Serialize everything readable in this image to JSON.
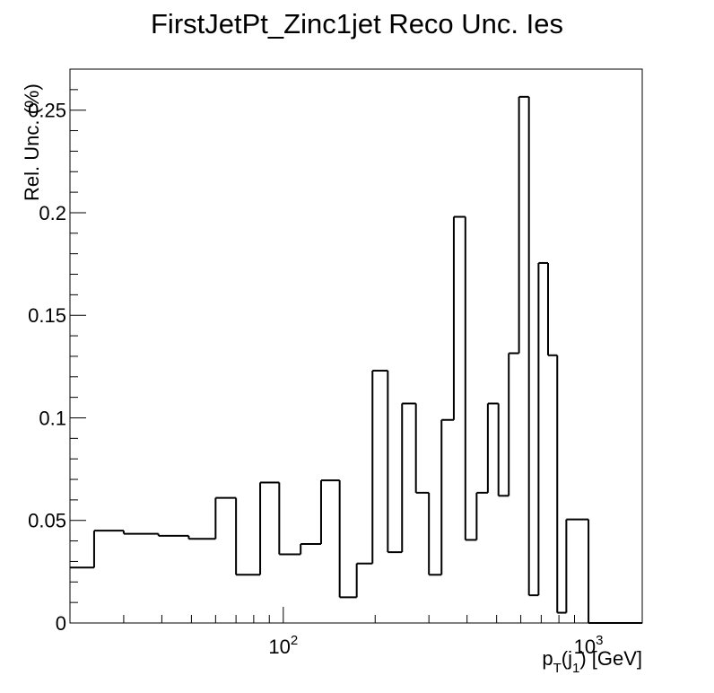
{
  "chart_data": {
    "type": "histogram",
    "title": "FirstJetPt_Zinc1jet Reco Unc. Ies",
    "ylabel": "Rel. Unc. (%)",
    "xlabel": "p_T(j_1) [GeV]",
    "xscale": "log",
    "xlim": [
      20,
      1500
    ],
    "ylim": [
      0,
      0.27
    ],
    "grid": false,
    "y_ticks": [
      0,
      0.05,
      0.1,
      0.15,
      0.2,
      0.25
    ],
    "y_tick_labels": [
      "0",
      "0.05",
      "0.1",
      "0.15",
      "0.2",
      "0.25"
    ],
    "x_tick_labels": [
      {
        "value": 100,
        "base": "10",
        "exp": "2"
      },
      {
        "value": 1000,
        "base": "10",
        "exp": "3"
      }
    ],
    "bin_edges": [
      20,
      24,
      30,
      39,
      49,
      60,
      70,
      84,
      97,
      114,
      133,
      153,
      174,
      196,
      220,
      245,
      272,
      300,
      330,
      362,
      395,
      430,
      468,
      507,
      548,
      592,
      638,
      686,
      737,
      790,
      846,
      1000,
      1500
    ],
    "values": [
      0.027,
      0.045,
      0.0435,
      0.0425,
      0.041,
      0.061,
      0.0235,
      0.0685,
      0.0335,
      0.0385,
      0.0695,
      0.0125,
      0.029,
      0.123,
      0.0345,
      0.107,
      0.0635,
      0.0235,
      0.099,
      0.198,
      0.0405,
      0.0635,
      0.107,
      0.062,
      0.1315,
      0.2565,
      0.0135,
      0.1755,
      0.1305,
      0.005,
      0.0505,
      0.0
    ]
  }
}
